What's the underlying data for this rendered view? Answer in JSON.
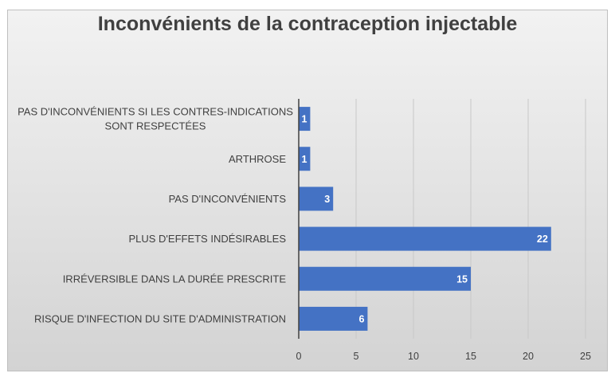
{
  "chart_data": {
    "type": "bar",
    "orientation": "horizontal",
    "title": "Inconvénients de la contraception injectable",
    "categories": [
      "PAS D'INCONVÉNIENTS SI LES CONTRES-INDICATIONS SONT RESPECTÉES",
      "ARTHROSE",
      "PAS D'INCONVÉNIENTS",
      "PLUS D'EFFETS INDÉSIRABLES",
      "IRRÉVERSIBLE DANS LA DURÉE PRESCRITE",
      "RISQUE D'INFECTION DU SITE D'ADMINISTRATION"
    ],
    "category_lines": [
      [
        "PAS D'INCONVÉNIENTS SI LES CONTRES-INDICATIONS",
        "SONT RESPECTÉES"
      ],
      [
        "ARTHROSE"
      ],
      [
        "PAS D'INCONVÉNIENTS"
      ],
      [
        "PLUS D'EFFETS INDÉSIRABLES"
      ],
      [
        "IRRÉVERSIBLE DANS LA DURÉE PRESCRITE"
      ],
      [
        "RISQUE D'INFECTION DU SITE D'ADMINISTRATION"
      ]
    ],
    "values": [
      1,
      1,
      3,
      22,
      15,
      6
    ],
    "xlim": [
      0,
      25
    ],
    "xticks": [
      0,
      5,
      10,
      15,
      20,
      25
    ],
    "grid": true,
    "data_labels": true,
    "bar_color": "#4472c4",
    "xlabel": "",
    "ylabel": ""
  }
}
